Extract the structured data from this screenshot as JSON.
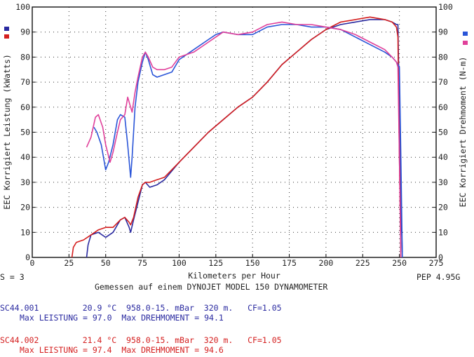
{
  "chart_data": {
    "type": "line",
    "xlabel": "Kilometers per Hour",
    "ylabel_left": "EEC Korrigiert Leistung (kWatts)",
    "ylabel_right": "EEC Korrigiert Drehmoment (N-m)",
    "xlim": [
      0,
      275
    ],
    "ylim": [
      0,
      100
    ],
    "x_ticks": [
      0,
      25,
      50,
      75,
      100,
      125,
      150,
      175,
      200,
      225,
      250,
      275
    ],
    "y_ticks": [
      0,
      10,
      20,
      30,
      40,
      50,
      60,
      70,
      80,
      90,
      100
    ],
    "grid": true,
    "legend_markers": {
      "blue": "#2a2aa0",
      "red": "#d41e1e",
      "right_blue": "#2a55d8",
      "right_pink": "#e0409a"
    },
    "series": [
      {
        "name": "SC44.001",
        "kind": "power",
        "color": "#2a2aa0",
        "points": [
          [
            37,
            0
          ],
          [
            38,
            5
          ],
          [
            40,
            9
          ],
          [
            45,
            10
          ],
          [
            50,
            8
          ],
          [
            55,
            10
          ],
          [
            60,
            15
          ],
          [
            63,
            16
          ],
          [
            66,
            12
          ],
          [
            67,
            10
          ],
          [
            69,
            15
          ],
          [
            72,
            22
          ],
          [
            75,
            29
          ],
          [
            77,
            30
          ],
          [
            80,
            28
          ],
          [
            85,
            29
          ],
          [
            90,
            31
          ],
          [
            100,
            38
          ],
          [
            110,
            44
          ],
          [
            120,
            50
          ],
          [
            130,
            55
          ],
          [
            140,
            60
          ],
          [
            150,
            64
          ],
          [
            160,
            70
          ],
          [
            170,
            77
          ],
          [
            180,
            82
          ],
          [
            190,
            87
          ],
          [
            200,
            91
          ],
          [
            210,
            93
          ],
          [
            220,
            94
          ],
          [
            230,
            95
          ],
          [
            240,
            95
          ],
          [
            245,
            94
          ],
          [
            248,
            93
          ],
          [
            249,
            93
          ],
          [
            250,
            60
          ],
          [
            251,
            20
          ],
          [
            252,
            2
          ]
        ]
      },
      {
        "name": "SC44.002",
        "kind": "power",
        "color": "#d41e1e",
        "points": [
          [
            27,
            0
          ],
          [
            28,
            4
          ],
          [
            30,
            6
          ],
          [
            35,
            7
          ],
          [
            40,
            9
          ],
          [
            45,
            11
          ],
          [
            50,
            12
          ],
          [
            55,
            12
          ],
          [
            60,
            15
          ],
          [
            63,
            16
          ],
          [
            66,
            14
          ],
          [
            67,
            13
          ],
          [
            69,
            16
          ],
          [
            72,
            24
          ],
          [
            75,
            29
          ],
          [
            77,
            30
          ],
          [
            80,
            30
          ],
          [
            85,
            31
          ],
          [
            90,
            32
          ],
          [
            100,
            38
          ],
          [
            110,
            44
          ],
          [
            120,
            50
          ],
          [
            130,
            55
          ],
          [
            140,
            60
          ],
          [
            150,
            64
          ],
          [
            160,
            70
          ],
          [
            170,
            77
          ],
          [
            180,
            82
          ],
          [
            190,
            87
          ],
          [
            200,
            91
          ],
          [
            210,
            94
          ],
          [
            220,
            95
          ],
          [
            230,
            96
          ],
          [
            240,
            95
          ],
          [
            245,
            94
          ],
          [
            248,
            92
          ],
          [
            249,
            88
          ],
          [
            250,
            40
          ],
          [
            251,
            0
          ]
        ]
      },
      {
        "name": "SC44.001",
        "kind": "torque",
        "color": "#2a55d8",
        "points": [
          [
            42,
            52
          ],
          [
            44,
            50
          ],
          [
            47,
            45
          ],
          [
            50,
            35
          ],
          [
            52,
            38
          ],
          [
            55,
            45
          ],
          [
            58,
            55
          ],
          [
            60,
            57
          ],
          [
            63,
            56
          ],
          [
            65,
            45
          ],
          [
            67,
            32
          ],
          [
            68,
            40
          ],
          [
            70,
            60
          ],
          [
            72,
            70
          ],
          [
            75,
            78
          ],
          [
            77,
            82
          ],
          [
            79,
            79
          ],
          [
            82,
            73
          ],
          [
            85,
            72
          ],
          [
            90,
            73
          ],
          [
            95,
            74
          ],
          [
            100,
            79
          ],
          [
            110,
            83
          ],
          [
            120,
            87
          ],
          [
            125,
            89
          ],
          [
            130,
            90
          ],
          [
            140,
            89
          ],
          [
            150,
            89
          ],
          [
            160,
            92
          ],
          [
            170,
            93
          ],
          [
            180,
            93
          ],
          [
            190,
            92
          ],
          [
            200,
            92
          ],
          [
            210,
            91
          ],
          [
            220,
            88
          ],
          [
            230,
            85
          ],
          [
            240,
            82
          ],
          [
            245,
            80
          ],
          [
            248,
            78
          ],
          [
            250,
            76
          ],
          [
            251,
            40
          ],
          [
            252,
            0
          ]
        ]
      },
      {
        "name": "SC44.002",
        "kind": "torque",
        "color": "#e0409a",
        "points": [
          [
            37,
            44
          ],
          [
            40,
            48
          ],
          [
            43,
            56
          ],
          [
            45,
            57
          ],
          [
            48,
            52
          ],
          [
            50,
            45
          ],
          [
            53,
            38
          ],
          [
            55,
            42
          ],
          [
            58,
            50
          ],
          [
            60,
            55
          ],
          [
            63,
            57
          ],
          [
            65,
            64
          ],
          [
            67,
            60
          ],
          [
            68,
            58
          ],
          [
            70,
            66
          ],
          [
            72,
            72
          ],
          [
            75,
            80
          ],
          [
            77,
            82
          ],
          [
            79,
            80
          ],
          [
            82,
            76
          ],
          [
            85,
            75
          ],
          [
            90,
            75
          ],
          [
            95,
            76
          ],
          [
            100,
            80
          ],
          [
            110,
            82
          ],
          [
            120,
            86
          ],
          [
            125,
            88
          ],
          [
            130,
            90
          ],
          [
            140,
            89
          ],
          [
            150,
            90
          ],
          [
            160,
            93
          ],
          [
            170,
            94
          ],
          [
            180,
            93
          ],
          [
            190,
            93
          ],
          [
            200,
            92
          ],
          [
            210,
            91
          ],
          [
            220,
            89
          ],
          [
            230,
            86
          ],
          [
            240,
            83
          ],
          [
            245,
            80
          ],
          [
            248,
            78
          ],
          [
            249,
            76
          ],
          [
            250,
            40
          ],
          [
            251,
            0
          ]
        ]
      }
    ]
  },
  "footer": {
    "s_label": "S = 3",
    "pep_label": "PEP 4.95G",
    "gemessen": "Gemessen auf einem DYNOJET MODEL 150 DYNAMOMETER"
  },
  "runs": [
    {
      "id": "SC44.001",
      "conditions": "20.9 °C  958.0-15. mBar  320 m.   CF=1.05",
      "max_line": "Max LEISTUNG = 97.0  Max DREHMOMENT = 94.1"
    },
    {
      "id": "SC44.002",
      "conditions": "21.4 °C  958.0-15. mBar  320 m.   CF=1.05",
      "max_line": "Max LEISTUNG = 97.4  Max DREHMOMENT = 94.6"
    }
  ]
}
